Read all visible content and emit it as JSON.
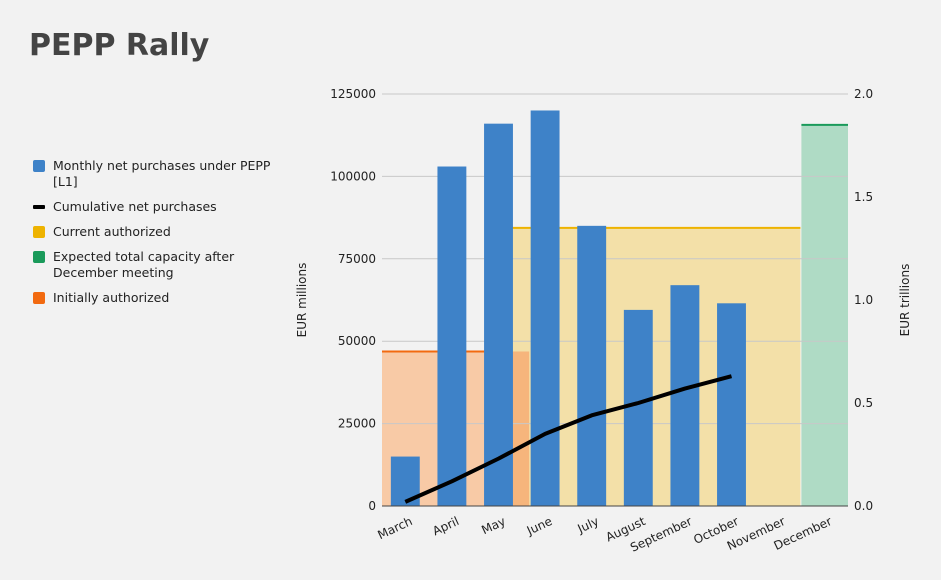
{
  "title": "PEPP Rally",
  "legend": [
    {
      "label": "Monthly net purchases under PEPP [L1]",
      "color": "#3e82c8",
      "kind": "box"
    },
    {
      "label": "Cumulative net purchases",
      "color": "#000000",
      "kind": "line"
    },
    {
      "label": "Current authorized",
      "color": "#eeb300",
      "kind": "box"
    },
    {
      "label": "Expected total capacity after December meeting",
      "color": "#1a9a5a",
      "kind": "box"
    },
    {
      "label": "Initially authorized",
      "color": "#f26a10",
      "kind": "box"
    }
  ],
  "chart_data": {
    "type": "bar",
    "title": "PEPP Rally",
    "categories": [
      "March",
      "April",
      "May",
      "June",
      "July",
      "August",
      "September",
      "October",
      "November",
      "December"
    ],
    "series": [
      {
        "name": "Monthly net purchases under PEPP [L1]",
        "axis": "left",
        "type": "bar",
        "values": [
          15000,
          103000,
          116000,
          120000,
          85000,
          59500,
          67000,
          61500,
          null,
          null
        ]
      },
      {
        "name": "Cumulative net purchases",
        "axis": "right",
        "type": "line",
        "values": [
          0.02,
          0.12,
          0.23,
          0.35,
          0.44,
          0.5,
          0.57,
          0.63,
          null,
          null
        ]
      }
    ],
    "bands": [
      {
        "name": "Initially authorized",
        "axis": "right",
        "value": 0.75,
        "from": "March",
        "to": "May"
      },
      {
        "name": "Current authorized",
        "axis": "right",
        "value": 1.35,
        "from": "June",
        "to": "November"
      },
      {
        "name": "Expected total capacity after December meeting",
        "axis": "right",
        "value": 1.85,
        "from": "December",
        "to": "December"
      }
    ],
    "ylabel": "EUR millions",
    "y2label": "EUR trillions",
    "ylim": [
      0,
      125000
    ],
    "y2lim": [
      0,
      2.0
    ],
    "yticks": [
      "0",
      "25000",
      "50000",
      "75000",
      "100000",
      "125000"
    ],
    "y2ticks": [
      "0.0",
      "0.5",
      "1.0",
      "1.5",
      "2.0"
    ],
    "grid": true,
    "legend_position": "left"
  },
  "colors": {
    "bar": "#3e82c8",
    "line": "#000000",
    "initial_fill": "#f8caa6",
    "initial_line": "#f26a10",
    "current_fill": "#f3e0a8",
    "current_line": "#eeb300",
    "expected_fill": "#afdbc5",
    "expected_line": "#1a9a5a",
    "grid": "#c8c8c8",
    "axis": "#444444"
  }
}
